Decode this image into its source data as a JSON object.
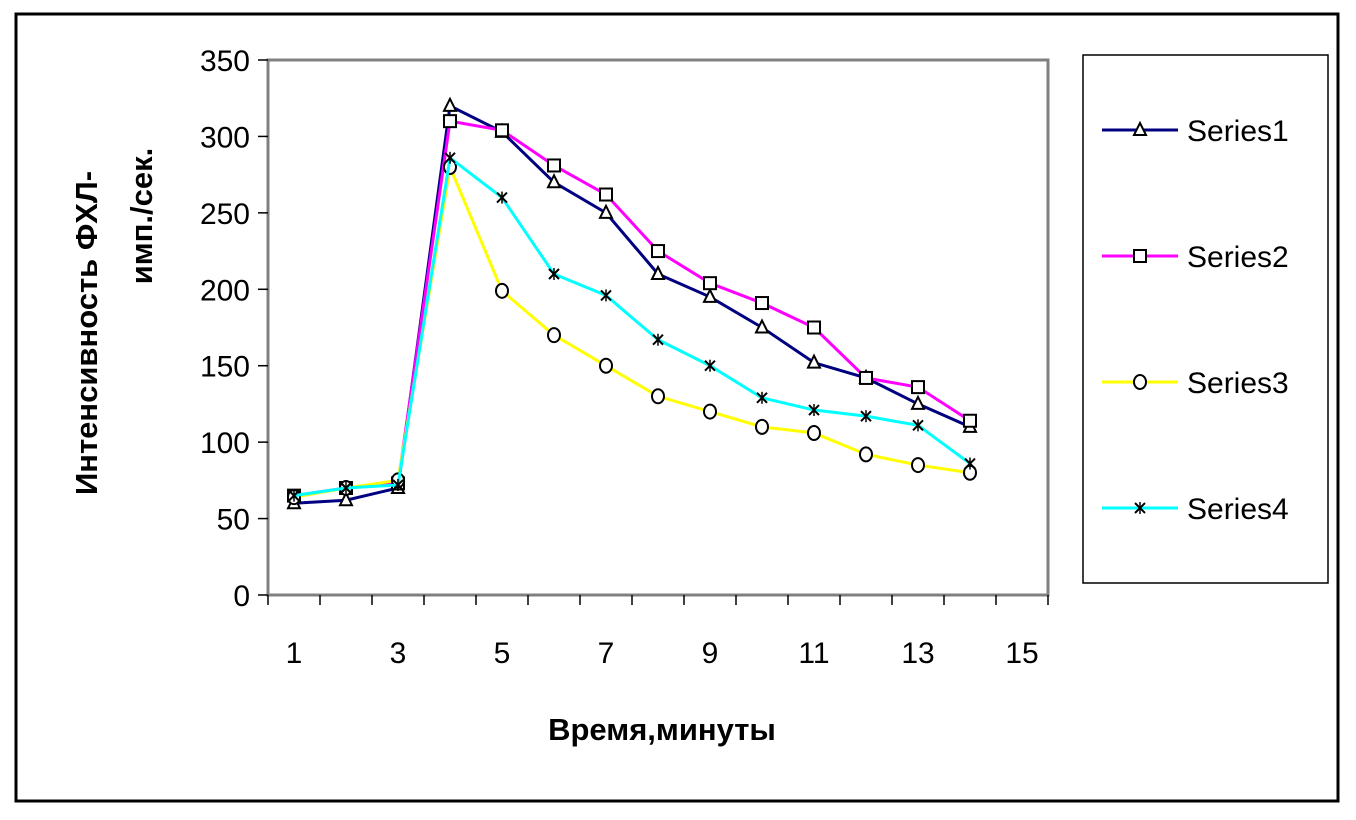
{
  "chart_data": {
    "type": "line",
    "title": "",
    "xlabel": "Время,минуты",
    "ylabel_lines": [
      "Интенсивность ФХЛ-",
      "имп./сек."
    ],
    "x": [
      1,
      2,
      3,
      4,
      5,
      6,
      7,
      8,
      9,
      10,
      11,
      12,
      13,
      14
    ],
    "x_tick_labels": [
      "1",
      "3",
      "5",
      "7",
      "9",
      "11",
      "13",
      "15"
    ],
    "xlim": [
      1,
      15
    ],
    "y_tick_labels": [
      "0",
      "50",
      "100",
      "150",
      "200",
      "250",
      "300",
      "350"
    ],
    "ylim": [
      0,
      350
    ],
    "grid": false,
    "legend_position": "right",
    "series": [
      {
        "name": "Series1",
        "color": "#000080",
        "marker": "triangle",
        "values": [
          60,
          62,
          70,
          320,
          303,
          270,
          250,
          210,
          195,
          175,
          152,
          142,
          125,
          110
        ]
      },
      {
        "name": "Series2",
        "color": "#ff00ff",
        "marker": "square",
        "values": [
          65,
          70,
          73,
          310,
          304,
          281,
          262,
          225,
          204,
          191,
          175,
          142,
          136,
          114
        ]
      },
      {
        "name": "Series3",
        "color": "#ffff00",
        "marker": "diamond",
        "values": [
          64,
          70,
          75,
          280,
          199,
          170,
          150,
          130,
          120,
          110,
          106,
          92,
          85,
          80
        ]
      },
      {
        "name": "Series4",
        "color": "#00ffff",
        "marker": "star",
        "values": [
          65,
          70,
          72,
          286,
          260,
          210,
          196,
          167,
          150,
          129,
          121,
          117,
          111,
          86
        ]
      }
    ]
  }
}
